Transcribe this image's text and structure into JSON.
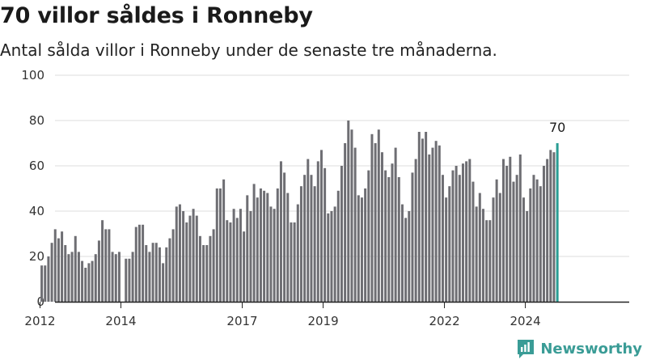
{
  "title": "70 villor såldes i Ronneby",
  "subtitle": "Antal sålda villor i Ronneby under de senaste tre månaderna.",
  "brand": "Newsworthy",
  "colors": {
    "bar": "#6e6e73",
    "highlight": "#2a9d94",
    "grid": "#dddddd",
    "axis": "#222222"
  },
  "chart_data": {
    "type": "bar",
    "ylim": [
      0,
      100
    ],
    "yticks": [
      0,
      20,
      40,
      60,
      80,
      100
    ],
    "xticks": [
      "2012",
      "2014",
      "2017",
      "2019",
      "2022",
      "2024"
    ],
    "tick_month_index": [
      12,
      36,
      72,
      96,
      132,
      156
    ],
    "x_start": "2011-01",
    "x_end": "2025-11",
    "first_month_index": 12,
    "last_label": "70",
    "values": [
      16,
      16,
      20,
      26,
      32,
      28,
      31,
      25,
      21,
      22,
      29,
      22,
      18,
      15,
      17,
      18,
      21,
      27,
      36,
      32,
      32,
      22,
      21,
      22,
      null,
      19,
      19,
      22,
      33,
      34,
      34,
      25,
      22,
      26,
      26,
      24,
      17,
      24,
      28,
      32,
      42,
      43,
      40,
      35,
      38,
      41,
      38,
      29,
      25,
      25,
      29,
      32,
      50,
      50,
      54,
      36,
      35,
      41,
      37,
      41,
      31,
      47,
      40,
      52,
      46,
      50,
      49,
      48,
      42,
      41,
      50,
      62,
      57,
      48,
      35,
      35,
      43,
      51,
      56,
      63,
      56,
      51,
      62,
      67,
      59,
      39,
      40,
      42,
      49,
      60,
      70,
      80,
      76,
      68,
      47,
      46,
      50,
      58,
      74,
      70,
      76,
      66,
      58,
      55,
      61,
      68,
      55,
      43,
      37,
      40,
      57,
      63,
      75,
      72,
      75,
      65,
      68,
      71,
      69,
      56,
      46,
      51,
      58,
      60,
      56,
      61,
      62,
      63,
      53,
      42,
      48,
      41,
      36,
      36,
      46,
      54,
      48,
      63,
      60,
      64,
      53,
      56,
      65,
      46,
      40,
      50,
      56,
      54,
      51,
      60,
      63,
      67,
      66,
      70
    ]
  }
}
